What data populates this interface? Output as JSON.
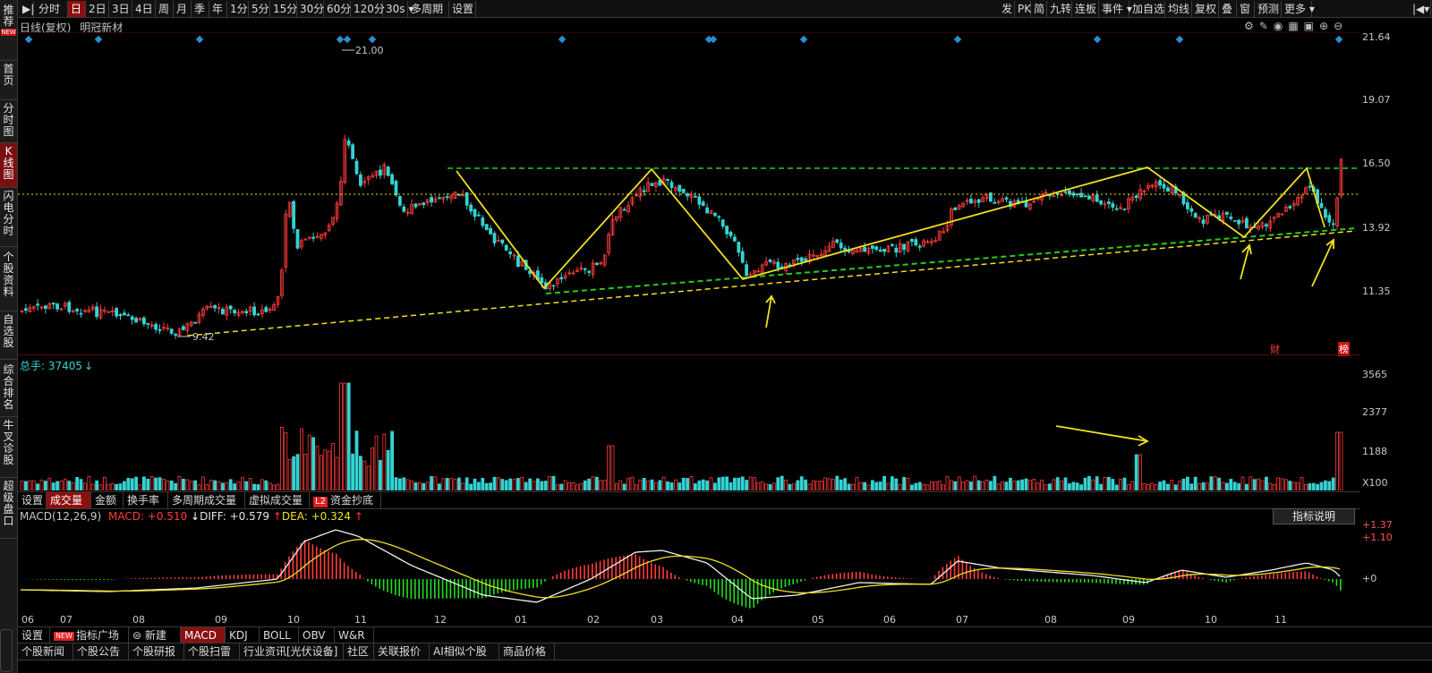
{
  "left_sidebar": [
    {
      "label": "推荐",
      "badge": "NEW"
    },
    {
      "label": "首页"
    },
    {
      "label": "分时图"
    },
    {
      "label": "K线图",
      "active": true
    },
    {
      "label": "闪电分时"
    },
    {
      "label": "个股资料"
    },
    {
      "label": "自选股"
    },
    {
      "label": "综合排名"
    },
    {
      "label": "牛叉诊股"
    },
    {
      "label": "超级盘口"
    }
  ],
  "toolbar": {
    "left": [
      "分时",
      "日",
      "2日",
      "3日",
      "4日",
      "周",
      "月",
      "季",
      "年",
      "1分",
      "5分",
      "15分",
      "30分",
      "60分",
      "120分",
      "30s",
      "多周期",
      "设置"
    ],
    "selected": "日",
    "right": [
      "发",
      "PK",
      "简",
      "九转",
      "连板",
      "事件",
      "加自选",
      "均线",
      "复权",
      "叠",
      "窗",
      "预测",
      "更多"
    ]
  },
  "main_chart": {
    "label_mode": "日线(复权)",
    "stock_name": "明冠新材",
    "price_axis": [
      "21.64",
      "19.07",
      "16.50",
      "13.92",
      "11.35"
    ],
    "high_annotation": "21.00",
    "low_annotation": "9.42",
    "badges": [
      "财",
      "榜"
    ]
  },
  "volume_pane": {
    "label": "总手: 37405",
    "axis": [
      "3565",
      "2377",
      "1188",
      "X100"
    ]
  },
  "indicator_tabs": {
    "items": [
      "设置",
      "成交量",
      "金额",
      "换手率",
      "多周期成交量",
      "虚拟成交量",
      "资金抄底"
    ],
    "selected": "成交量",
    "l2_badge": "L2"
  },
  "macd_pane": {
    "name": "MACD(12,26,9)",
    "macd": "MACD: +0.510",
    "diff": "DIFF: +0.579",
    "dea": "DEA: +0.324",
    "explain_button": "指标说明",
    "axis": [
      "+1.37",
      "+1.10",
      "+0"
    ]
  },
  "x_axis": [
    "06",
    "07",
    "08",
    "09",
    "10",
    "11",
    "12",
    "01",
    "02",
    "03",
    "04",
    "05",
    "06",
    "07",
    "08",
    "09",
    "10",
    "11"
  ],
  "bottom_tabs": {
    "items": [
      "设置",
      "指标广场",
      "新建",
      "MACD",
      "KDJ",
      "BOLL",
      "OBV",
      "W&R"
    ],
    "selected": "MACD",
    "new_badge": "NEW"
  },
  "news_tabs": [
    "个股新闻",
    "个股公告",
    "个股研报",
    "个股扫雷",
    "行业资讯[光伏设备]",
    "社区",
    "关联报价",
    "AI相似个股",
    "商品价格"
  ],
  "colors": {
    "up": "#ff3b3b",
    "down": "#35d2d2",
    "trend_green": "#22cc22",
    "trend_yellow": "#f0e020",
    "accent": "#8c1010",
    "marker": "#2a8fd0"
  }
}
